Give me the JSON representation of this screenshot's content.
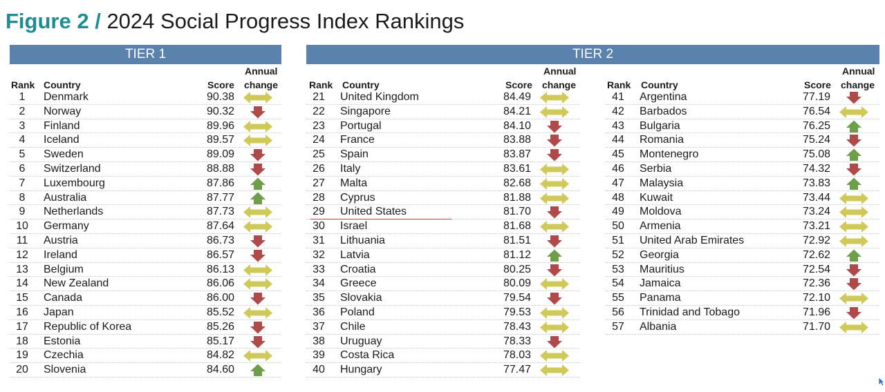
{
  "title": {
    "figure": "Figure 2 /",
    "text": "2024 Social Progress Index Rankings"
  },
  "headers": {
    "rank": "Rank",
    "country": "Country",
    "score": "Score",
    "annual": "Annual",
    "change": "change"
  },
  "colors": {
    "up": "#6e9e4a",
    "down": "#b04a4a",
    "same": "#cfc95a",
    "banner": "#5b82ac",
    "figure": "#1e8c93"
  },
  "tiers": [
    {
      "label": "TIER 1"
    },
    {
      "label": "TIER 2"
    }
  ],
  "tables": [
    {
      "rows": [
        {
          "rank": "1",
          "country": "Denmark",
          "score": "90.38",
          "change": "same"
        },
        {
          "rank": "2",
          "country": "Norway",
          "score": "90.32",
          "change": "down"
        },
        {
          "rank": "3",
          "country": "Finland",
          "score": "89.96",
          "change": "same"
        },
        {
          "rank": "4",
          "country": "Iceland",
          "score": "89.57",
          "change": "same"
        },
        {
          "rank": "5",
          "country": "Sweden",
          "score": "89.09",
          "change": "down"
        },
        {
          "rank": "6",
          "country": "Switzerland",
          "score": "88.88",
          "change": "down"
        },
        {
          "rank": "7",
          "country": "Luxembourg",
          "score": "87.86",
          "change": "up"
        },
        {
          "rank": "8",
          "country": "Australia",
          "score": "87.77",
          "change": "up"
        },
        {
          "rank": "9",
          "country": "Netherlands",
          "score": "87.73",
          "change": "same"
        },
        {
          "rank": "10",
          "country": "Germany",
          "score": "87.64",
          "change": "same"
        },
        {
          "rank": "11",
          "country": "Austria",
          "score": "86.73",
          "change": "down"
        },
        {
          "rank": "12",
          "country": "Ireland",
          "score": "86.57",
          "change": "down"
        },
        {
          "rank": "13",
          "country": "Belgium",
          "score": "86.13",
          "change": "same"
        },
        {
          "rank": "14",
          "country": "New Zealand",
          "score": "86.06",
          "change": "same"
        },
        {
          "rank": "15",
          "country": "Canada",
          "score": "86.00",
          "change": "down"
        },
        {
          "rank": "16",
          "country": "Japan",
          "score": "85.52",
          "change": "same"
        },
        {
          "rank": "17",
          "country": "Republic of Korea",
          "score": "85.26",
          "change": "down"
        },
        {
          "rank": "18",
          "country": "Estonia",
          "score": "85.17",
          "change": "down"
        },
        {
          "rank": "19",
          "country": "Czechia",
          "score": "84.82",
          "change": "same"
        },
        {
          "rank": "20",
          "country": "Slovenia",
          "score": "84.60",
          "change": "up"
        }
      ]
    },
    {
      "rows": [
        {
          "rank": "21",
          "country": "United Kingdom",
          "score": "84.49",
          "change": "same"
        },
        {
          "rank": "22",
          "country": "Singapore",
          "score": "84.21",
          "change": "same"
        },
        {
          "rank": "23",
          "country": "Portugal",
          "score": "84.10",
          "change": "down"
        },
        {
          "rank": "24",
          "country": "France",
          "score": "83.88",
          "change": "down"
        },
        {
          "rank": "25",
          "country": "Spain",
          "score": "83.87",
          "change": "down"
        },
        {
          "rank": "26",
          "country": "Italy",
          "score": "83.61",
          "change": "same"
        },
        {
          "rank": "27",
          "country": "Malta",
          "score": "82.68",
          "change": "same"
        },
        {
          "rank": "28",
          "country": "Cyprus",
          "score": "81.88",
          "change": "same"
        },
        {
          "rank": "29",
          "country": "United States",
          "score": "81.70",
          "change": "down",
          "highlight": true
        },
        {
          "rank": "30",
          "country": "Israel",
          "score": "81.68",
          "change": "same"
        },
        {
          "rank": "31",
          "country": "Lithuania",
          "score": "81.51",
          "change": "down"
        },
        {
          "rank": "32",
          "country": "Latvia",
          "score": "81.12",
          "change": "up"
        },
        {
          "rank": "33",
          "country": "Croatia",
          "score": "80.25",
          "change": "down"
        },
        {
          "rank": "34",
          "country": "Greece",
          "score": "80.09",
          "change": "same"
        },
        {
          "rank": "35",
          "country": "Slovakia",
          "score": "79.54",
          "change": "down"
        },
        {
          "rank": "36",
          "country": "Poland",
          "score": "79.53",
          "change": "same"
        },
        {
          "rank": "37",
          "country": "Chile",
          "score": "78.43",
          "change": "same"
        },
        {
          "rank": "38",
          "country": "Uruguay",
          "score": "78.33",
          "change": "down"
        },
        {
          "rank": "39",
          "country": "Costa Rica",
          "score": "78.03",
          "change": "same"
        },
        {
          "rank": "40",
          "country": "Hungary",
          "score": "77.47",
          "change": "same"
        }
      ]
    },
    {
      "rows": [
        {
          "rank": "41",
          "country": "Argentina",
          "score": "77.19",
          "change": "down"
        },
        {
          "rank": "42",
          "country": "Barbados",
          "score": "76.54",
          "change": "same"
        },
        {
          "rank": "43",
          "country": "Bulgaria",
          "score": "76.25",
          "change": "up"
        },
        {
          "rank": "44",
          "country": "Romania",
          "score": "75.24",
          "change": "down"
        },
        {
          "rank": "45",
          "country": "Montenegro",
          "score": "75.08",
          "change": "up"
        },
        {
          "rank": "46",
          "country": "Serbia",
          "score": "74.32",
          "change": "down"
        },
        {
          "rank": "47",
          "country": "Malaysia",
          "score": "73.83",
          "change": "up"
        },
        {
          "rank": "48",
          "country": "Kuwait",
          "score": "73.44",
          "change": "same"
        },
        {
          "rank": "49",
          "country": "Moldova",
          "score": "73.24",
          "change": "same"
        },
        {
          "rank": "50",
          "country": "Armenia",
          "score": "73.21",
          "change": "same"
        },
        {
          "rank": "51",
          "country": "United Arab Emirates",
          "score": "72.92",
          "change": "same"
        },
        {
          "rank": "52",
          "country": "Georgia",
          "score": "72.62",
          "change": "up"
        },
        {
          "rank": "53",
          "country": "Mauritius",
          "score": "72.54",
          "change": "down"
        },
        {
          "rank": "54",
          "country": "Jamaica",
          "score": "72.36",
          "change": "down"
        },
        {
          "rank": "55",
          "country": "Panama",
          "score": "72.10",
          "change": "same"
        },
        {
          "rank": "56",
          "country": "Trinidad and Tobago",
          "score": "71.96",
          "change": "down"
        },
        {
          "rank": "57",
          "country": "Albania",
          "score": "71.70",
          "change": "same"
        }
      ]
    }
  ]
}
